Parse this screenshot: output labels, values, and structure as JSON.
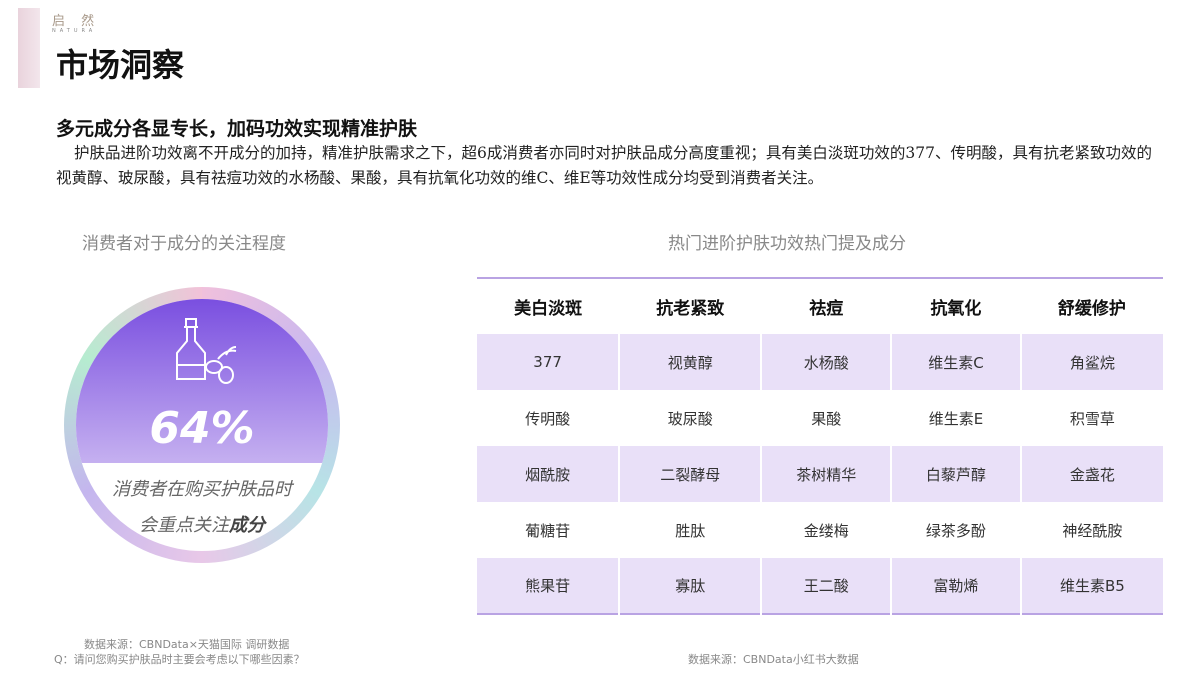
{
  "brand": {
    "name": "启 然",
    "sub": "NATURA"
  },
  "header": {
    "title": "市场洞察"
  },
  "subtitle": "多元成分各显专长，加码功效实现精准护肤",
  "paragraph": "护肤品进阶功效离不开成分的加持，精准护肤需求之下，超6成消费者亦同时对护肤品成分高度重视；具有美白淡斑功效的377、传明酸，具有抗老紧致功效的视黄醇、玻尿酸，具有祛痘功效的水杨酸、果酸，具有抗氧化功效的维C、维E等功效性成分均受到消费者关注。",
  "left": {
    "caption": "消费者对于成分的关注程度",
    "percent": "64%",
    "line1": "消费者在购买护肤品时",
    "line2_prefix": "会重点关注",
    "line2_bold": "成分",
    "icon": "oil-bottle-olive-icon",
    "source": "数据来源：CBNData×天猫国际 调研数据",
    "question": "Q：请问您购买护肤品时主要会考虑以下哪些因素？"
  },
  "right": {
    "caption": "热门进阶护肤功效热门提及成分",
    "headers": [
      "美白淡斑",
      "抗老紧致",
      "祛痘",
      "抗氧化",
      "舒缓修护"
    ],
    "rows": [
      [
        "377",
        "视黄醇",
        "水杨酸",
        "维生素C",
        "角鲨烷"
      ],
      [
        "传明酸",
        "玻尿酸",
        "果酸",
        "维生素E",
        "积雪草"
      ],
      [
        "烟酰胺",
        "二裂酵母",
        "茶树精华",
        "白藜芦醇",
        "金盏花"
      ],
      [
        "葡糖苷",
        "胜肽",
        "金缕梅",
        "绿茶多酚",
        "神经酰胺"
      ],
      [
        "熊果苷",
        "寡肽",
        "王二酸",
        "富勒烯",
        "维生素B5"
      ]
    ],
    "source": "数据来源：CBNData小红书大数据"
  },
  "colors": {
    "accent": "#7a4fe0",
    "row_tint": "#e9e0f8"
  }
}
